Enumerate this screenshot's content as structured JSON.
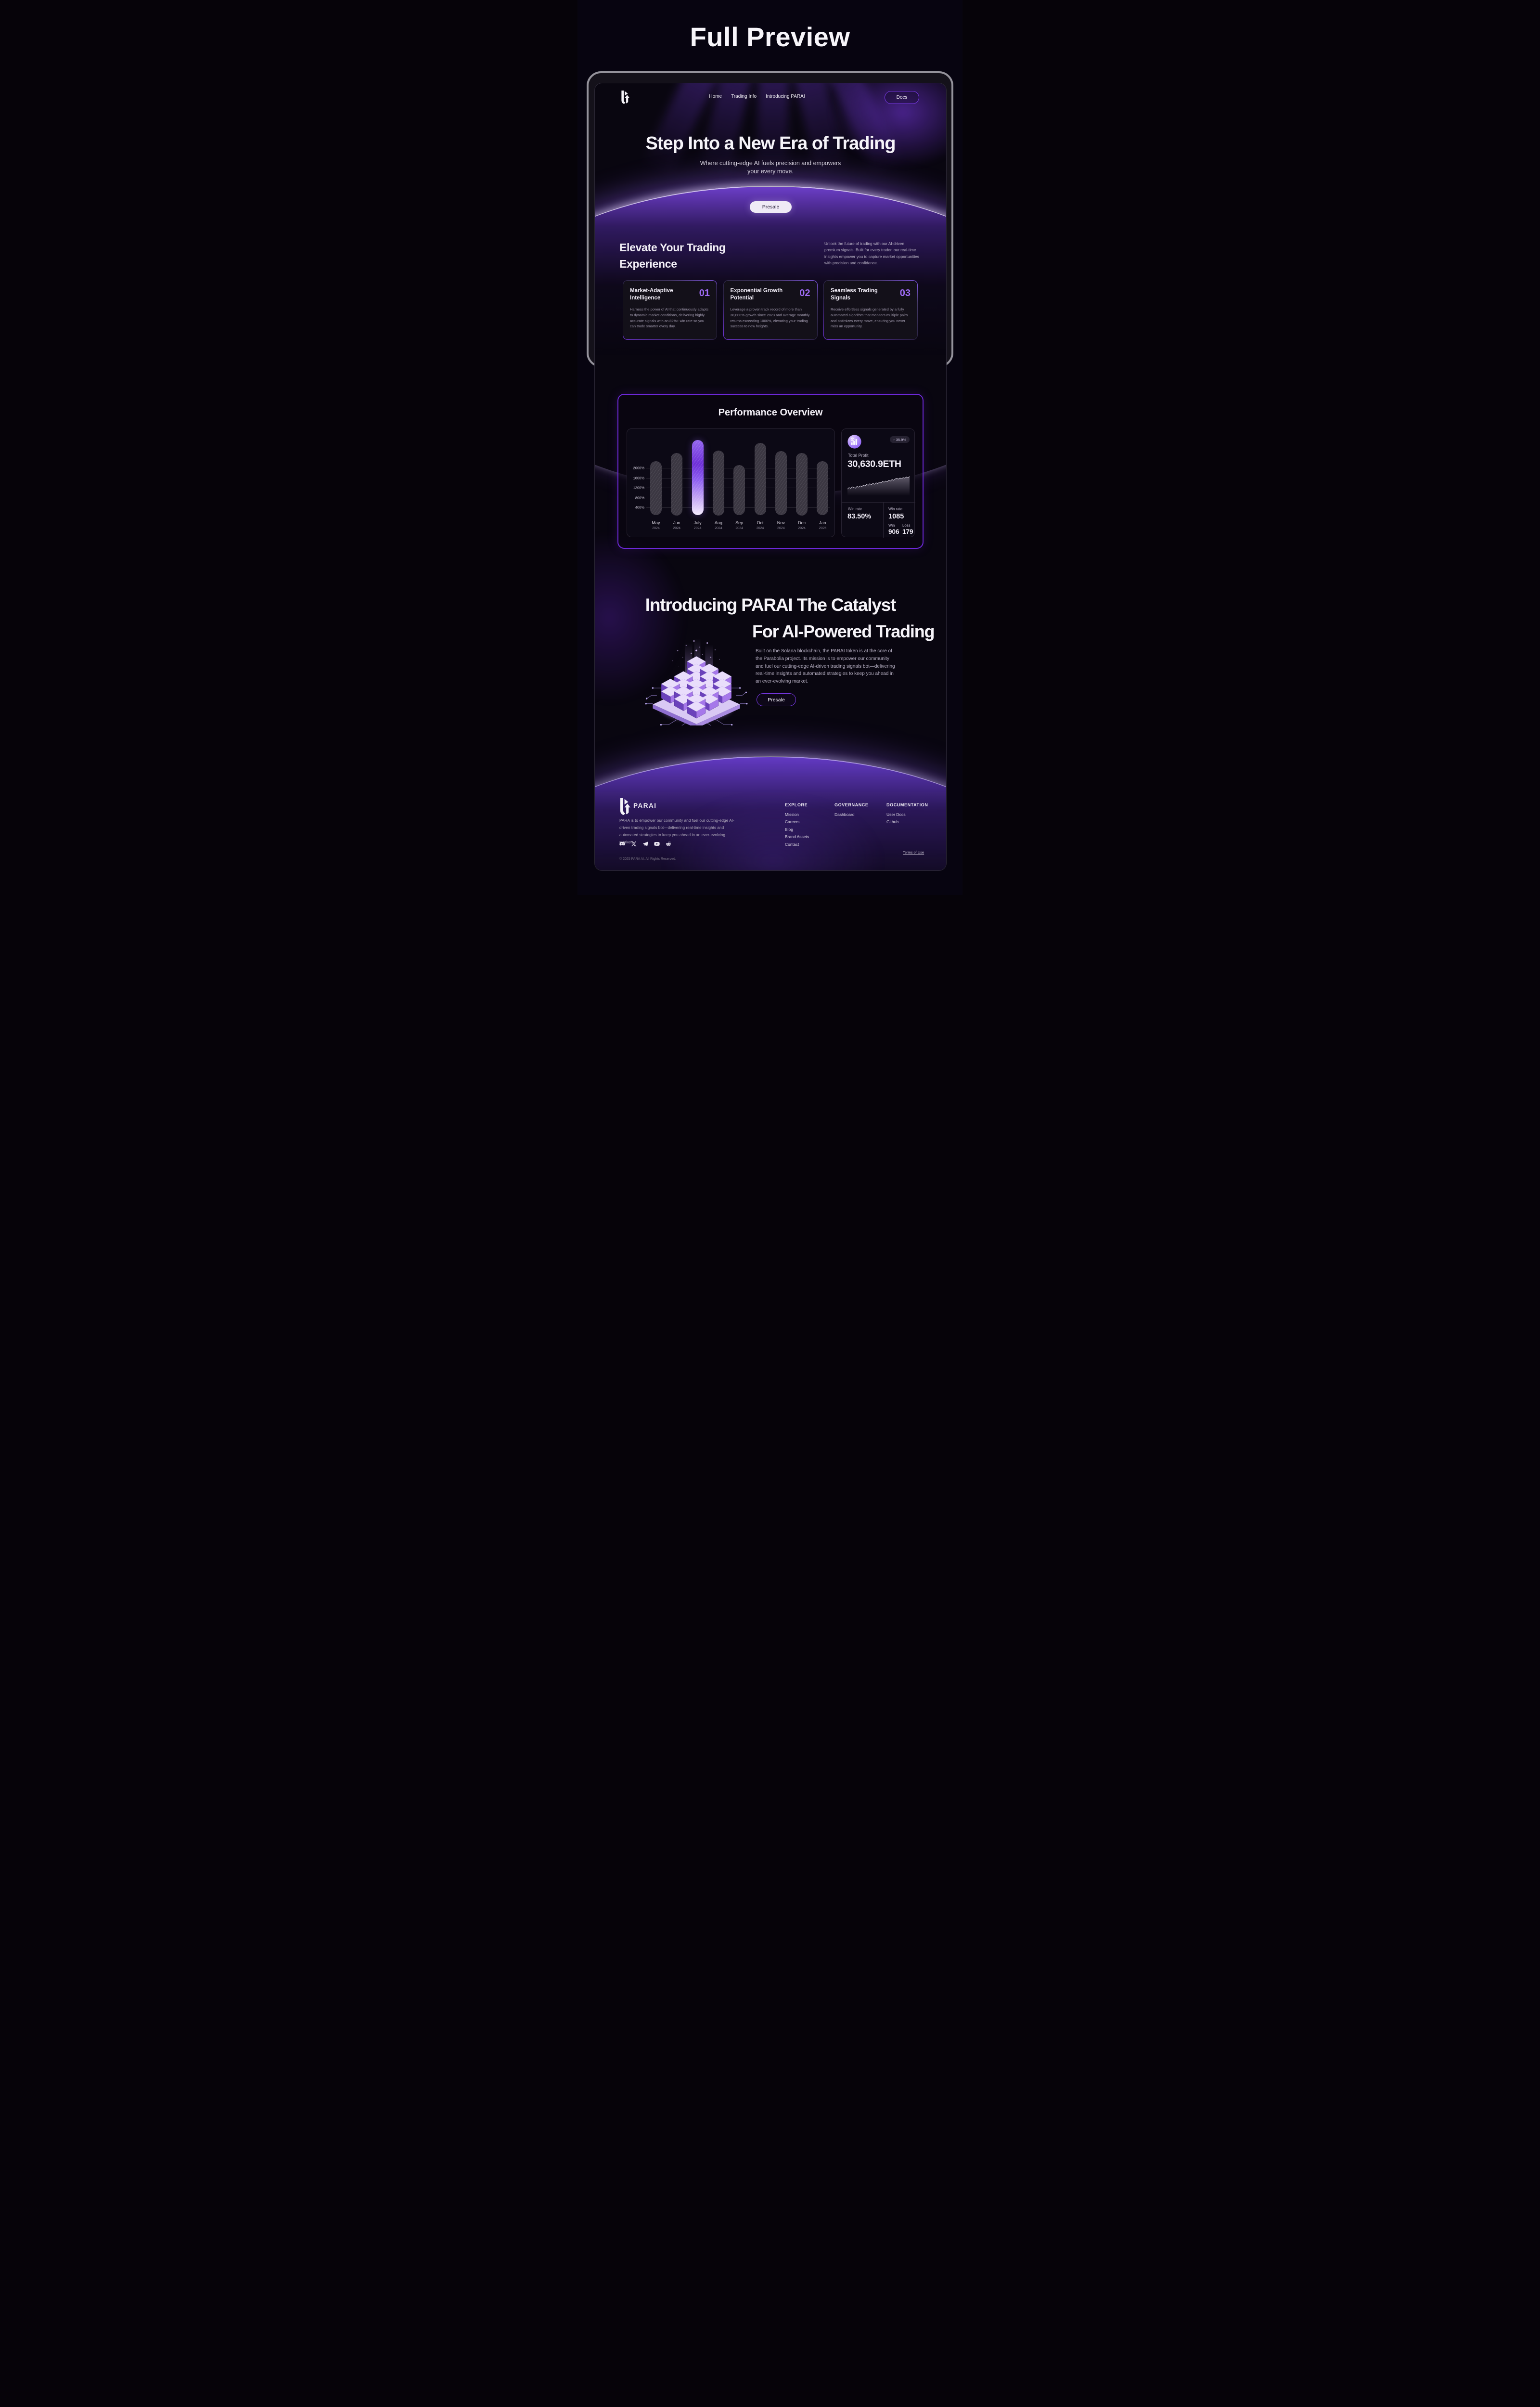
{
  "preview_title": "Full Preview",
  "nav": {
    "links": [
      "Home",
      "Trading Info",
      "Introducing PARAI"
    ],
    "docs_label": "Docs"
  },
  "hero": {
    "title": "Step Into a New Era of Trading",
    "subtitle_line1": "Where cutting-edge AI fuels precision and empowers",
    "subtitle_line2": "your every move.",
    "cta_label": "Presale"
  },
  "elevate": {
    "title_line1": "Elevate Your Trading",
    "title_line2": "Experience",
    "description": "Unlock the future of trading with our AI-driven premium signals. Built for every trader, our real-time insights empower you to capture market opportunities with precision and confidence."
  },
  "features": [
    {
      "number": "01",
      "title": "Market-Adaptive Intelligence",
      "body": "Harness the power of AI that continuously adapts to dynamic market conditions, delivering highly accurate signals with an 82%+ win rate so you can trade smarter every day."
    },
    {
      "number": "02",
      "title": "Exponential Growth Potential",
      "body": "Leverage a proven track record of more than 30,000% growth since 2023 and average monthly returns exceeding 1000%, elevating your trading success to new heights."
    },
    {
      "number": "03",
      "title": "Seamless Trading Signals",
      "body": "Receive effortless signals generated by a fully automated algorithm that monitors multiple pairs and optimizes every move, ensuring you never miss an opportunity."
    }
  ],
  "performance": {
    "title": "Performance Overview",
    "stats": {
      "change_badge": "↑ 35.9%",
      "total_profit_label": "Total Profit",
      "total_profit_value": "30,630.9ETH",
      "win_rate_label": "Win rate",
      "win_rate_value": "83.50%",
      "trades_label": "Win rate",
      "trades_value": "1085",
      "win_label": "Win",
      "win_value": "906",
      "loss_label": "Loss",
      "loss_value": "179"
    }
  },
  "chart_data": [
    {
      "type": "bar",
      "title": "Performance Overview",
      "categories": [
        "May 2024",
        "Jun 2024",
        "July 2024",
        "Aug 2024",
        "Sep 2024",
        "Oct 2024",
        "Nov 2024",
        "Dec 2024",
        "Jan 2025"
      ],
      "values": [
        2270,
        2600,
        3130,
        2700,
        2110,
        3010,
        2680,
        2600,
        2270
      ],
      "highlight_category": "July 2024",
      "xlabel": "",
      "ylabel": "monthly return",
      "yticks": [
        400,
        800,
        1200,
        1600,
        2000
      ],
      "ytick_suffix": "%",
      "ylim": [
        0,
        3300
      ],
      "grid": true,
      "legend": false
    },
    {
      "type": "area",
      "title": "Total Profit trend sparkline",
      "values": [
        30,
        38,
        34,
        42,
        38,
        35,
        44,
        40,
        47,
        43,
        50,
        46,
        54,
        50,
        58,
        53,
        60,
        55,
        63,
        58,
        66,
        62,
        70,
        66,
        72,
        69,
        76,
        72,
        80,
        76,
        83,
        86,
        82,
        88,
        84,
        90,
        87,
        93,
        89,
        96
      ],
      "ylim": [
        0,
        100
      ],
      "grid": false,
      "legend": false
    }
  ],
  "intro": {
    "title_line1": "Introducing PARAI The Catalyst",
    "title_line2": "For AI-Powered Trading",
    "body": "Built on the Solana blockchain, the PARAI token is at the core of the Parabolia project. Its mission is to empower our community and fuel our cutting-edge AI-driven trading signals bot—delivering real-time insights and automated strategies to keep you ahead in an ever-evolving market.",
    "cta_label": "Presale"
  },
  "footer": {
    "brand": "PARAI",
    "description": "PARA is to empower our community and fuel our cutting-edge AI-driven trading signals bot—delivering real-time insights and automated strategies to keep you ahead in an ever-evolving market.",
    "socials": [
      "discord",
      "x",
      "telegram",
      "youtube",
      "reddit"
    ],
    "columns": [
      {
        "title": "EXPLORE",
        "items": [
          "Mission",
          "Careers",
          "Blog",
          "Brand Assets",
          "Contact"
        ]
      },
      {
        "title": "GOVERNANCE",
        "items": [
          "Dashboard"
        ]
      },
      {
        "title": "DOCUMENTATION",
        "items": [
          "User Docs",
          "Github"
        ]
      }
    ],
    "terms_label": "Terms of Use",
    "copyright": "© 2025 PARA AI, All Rights Reserved."
  }
}
